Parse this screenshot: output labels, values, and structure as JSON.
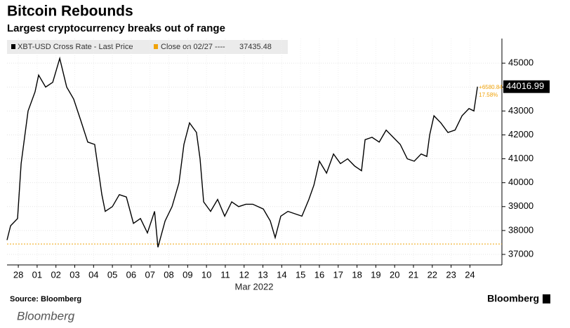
{
  "chart_data": {
    "type": "line",
    "title": "Bitcoin Rebounds",
    "subtitle": "Largest cryptocurrency breaks out of range",
    "x_label": "Mar 2022",
    "source": "Source: Bloomberg",
    "logo": "Bloomberg",
    "caption": "Bloomberg",
    "series": [
      {
        "name": "XBT-USD Cross Rate - Last Price",
        "color": "#000000",
        "x": [
          -0.6,
          -0.41,
          -0.04,
          0.15,
          0.52,
          0.89,
          1.08,
          1.45,
          1.83,
          2.2,
          2.57,
          2.94,
          3.32,
          3.69,
          4.06,
          4.44,
          4.62,
          5.0,
          5.37,
          5.74,
          6.12,
          6.49,
          6.86,
          7.24,
          7.42,
          7.8,
          8.17,
          8.54,
          8.8,
          9.1,
          9.47,
          9.66,
          9.85,
          10.22,
          10.59,
          10.97,
          11.34,
          11.71,
          12.09,
          12.46,
          13.02,
          13.39,
          13.65,
          13.95,
          14.33,
          14.7,
          15.07,
          15.44,
          15.71,
          16.0,
          16.38,
          16.75,
          17.12,
          17.5,
          17.87,
          18.24,
          18.43,
          18.8,
          19.18,
          19.55,
          19.92,
          20.3,
          20.67,
          21.04,
          21.41,
          21.71,
          21.86,
          22.09,
          22.46,
          22.83,
          23.21,
          23.58,
          23.95,
          24.21,
          24.4
        ],
        "values": [
          37600,
          38200,
          38500,
          40800,
          43000,
          43800,
          44500,
          44000,
          44200,
          45200,
          44000,
          43500,
          42600,
          41700,
          41600,
          39500,
          38800,
          39000,
          39500,
          39400,
          38300,
          38500,
          37900,
          38800,
          37300,
          38400,
          39000,
          40000,
          41600,
          42500,
          42100,
          41000,
          39200,
          38800,
          39300,
          38600,
          39200,
          39000,
          39100,
          39100,
          38900,
          38400,
          37700,
          38600,
          38800,
          38700,
          38600,
          39300,
          39900,
          40900,
          40400,
          41200,
          40800,
          41000,
          40700,
          40500,
          41800,
          41900,
          41700,
          42200,
          41900,
          41600,
          41000,
          40900,
          41200,
          41100,
          42000,
          42800,
          42500,
          42100,
          42200,
          42800,
          43100,
          43000,
          44016.99
        ]
      }
    ],
    "reference": {
      "name": "Close on 02/27 ----",
      "value": 37435.48,
      "color": "#f0a30a"
    },
    "change": "+6580.84",
    "change_pct": "17.58%",
    "xlim": [
      -0.6,
      25.7
    ],
    "xticks": [
      {
        "value": 0,
        "label": "28"
      },
      {
        "value": 1,
        "label": "01"
      },
      {
        "value": 2,
        "label": "02"
      },
      {
        "value": 3,
        "label": "03"
      },
      {
        "value": 4,
        "label": "04"
      },
      {
        "value": 5,
        "label": "05"
      },
      {
        "value": 6,
        "label": "06"
      },
      {
        "value": 7,
        "label": "07"
      },
      {
        "value": 8,
        "label": "08"
      },
      {
        "value": 9,
        "label": "09"
      },
      {
        "value": 10,
        "label": "10"
      },
      {
        "value": 11,
        "label": "11"
      },
      {
        "value": 12,
        "label": "12"
      },
      {
        "value": 13,
        "label": "13"
      },
      {
        "value": 14,
        "label": "14"
      },
      {
        "value": 15,
        "label": "15"
      },
      {
        "value": 16,
        "label": "16"
      },
      {
        "value": 17,
        "label": "17"
      },
      {
        "value": 18,
        "label": "18"
      },
      {
        "value": 19,
        "label": "19"
      },
      {
        "value": 20,
        "label": "20"
      },
      {
        "value": 21,
        "label": "21"
      },
      {
        "value": 22,
        "label": "22"
      },
      {
        "value": 23,
        "label": "23"
      },
      {
        "value": 24,
        "label": "24"
      }
    ],
    "ylim": [
      36560,
      46030
    ],
    "yticks": [
      37000,
      38000,
      39000,
      40000,
      41000,
      42000,
      43000,
      44000,
      45000
    ],
    "grid": true
  }
}
